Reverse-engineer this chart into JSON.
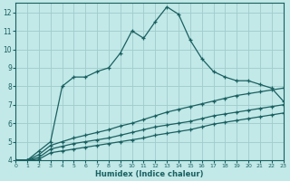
{
  "xlabel": "Humidex (Indice chaleur)",
  "bg_color": "#c2e8e8",
  "grid_color": "#a0cccc",
  "line_color": "#1a6060",
  "xlim": [
    0,
    23
  ],
  "ylim": [
    4,
    12.5
  ],
  "xticks": [
    0,
    1,
    2,
    3,
    4,
    5,
    6,
    7,
    8,
    9,
    10,
    11,
    12,
    13,
    14,
    15,
    16,
    17,
    18,
    19,
    20,
    21,
    22,
    23
  ],
  "yticks": [
    4,
    5,
    6,
    7,
    8,
    9,
    10,
    11,
    12
  ],
  "curve1_x": [
    0,
    1,
    2,
    3,
    4,
    5,
    6,
    7,
    8,
    9,
    10,
    11,
    12,
    13,
    14,
    15,
    16,
    17,
    18,
    19,
    20,
    21,
    22,
    23
  ],
  "curve1_y": [
    4.0,
    4.0,
    4.5,
    5.0,
    8.0,
    8.5,
    8.5,
    8.8,
    9.0,
    9.8,
    11.0,
    10.6,
    11.5,
    12.3,
    11.9,
    10.5,
    9.5,
    8.8,
    8.5,
    8.3,
    8.3,
    8.1,
    7.9,
    7.2
  ],
  "curve2_x": [
    0,
    1,
    2,
    3,
    4,
    5,
    6,
    7,
    8,
    9,
    10,
    11,
    12,
    13,
    14,
    15,
    16,
    17,
    18,
    19,
    20,
    21,
    22,
    23
  ],
  "curve2_y": [
    4.0,
    4.0,
    4.3,
    4.8,
    5.0,
    5.2,
    5.35,
    5.5,
    5.65,
    5.85,
    6.0,
    6.2,
    6.4,
    6.6,
    6.75,
    6.9,
    7.05,
    7.2,
    7.35,
    7.5,
    7.6,
    7.7,
    7.8,
    7.9
  ],
  "curve3_x": [
    0,
    1,
    2,
    3,
    4,
    5,
    6,
    7,
    8,
    9,
    10,
    11,
    12,
    13,
    14,
    15,
    16,
    17,
    18,
    19,
    20,
    21,
    22,
    23
  ],
  "curve3_y": [
    4.0,
    4.0,
    4.15,
    4.6,
    4.75,
    4.9,
    5.0,
    5.1,
    5.2,
    5.35,
    5.5,
    5.65,
    5.8,
    5.9,
    6.0,
    6.1,
    6.25,
    6.4,
    6.5,
    6.6,
    6.7,
    6.8,
    6.9,
    7.0
  ],
  "curve4_x": [
    0,
    1,
    2,
    3,
    4,
    5,
    6,
    7,
    8,
    9,
    10,
    11,
    12,
    13,
    14,
    15,
    16,
    17,
    18,
    19,
    20,
    21,
    22,
    23
  ],
  "curve4_y": [
    4.0,
    4.0,
    4.05,
    4.4,
    4.5,
    4.6,
    4.7,
    4.8,
    4.9,
    5.0,
    5.1,
    5.2,
    5.35,
    5.45,
    5.55,
    5.65,
    5.8,
    5.95,
    6.05,
    6.15,
    6.25,
    6.35,
    6.45,
    6.55
  ]
}
